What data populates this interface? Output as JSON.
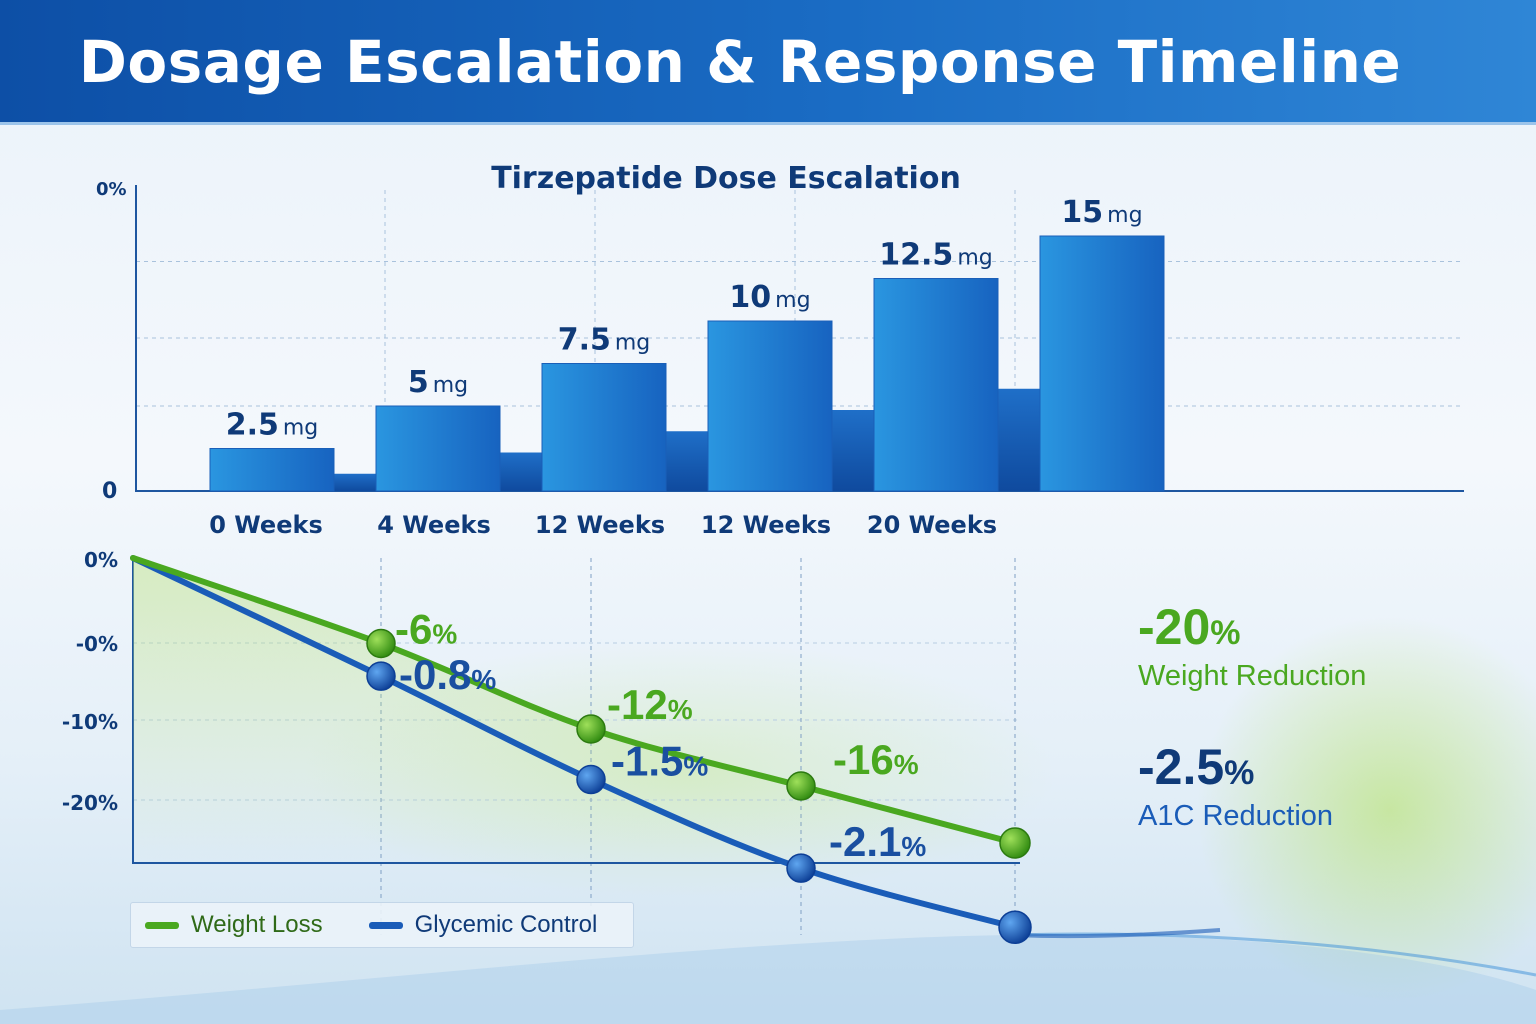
{
  "title": "Dosage Escalation & Response Timeline",
  "colors": {
    "bar": "#1f7fd0",
    "weight_loss": "#4aa820",
    "glycemic_control": "#1a5cb8",
    "label_dark": "#0f3a78",
    "axis": "#1e56a0"
  },
  "chart_data": [
    {
      "type": "bar",
      "title": "Tirzepatide Dose Escalation",
      "categories": [
        "0 Weeks",
        "4 Weeks",
        "12 Weeks",
        "12 Weeks",
        "20 Weeks",
        ""
      ],
      "values": [
        2.5,
        5,
        7.5,
        10,
        12.5,
        15
      ],
      "data_labels": [
        {
          "num": "2.5",
          "unit": "mg"
        },
        {
          "num": "5",
          "unit": "mg"
        },
        {
          "num": "7.5",
          "unit": "mg"
        },
        {
          "num": "10",
          "unit": "mg"
        },
        {
          "num": "12.5",
          "unit": "mg"
        },
        {
          "num": "15",
          "unit": "mg"
        }
      ],
      "y_tick_labels": [
        "0%",
        "0"
      ],
      "ylim": [
        0,
        18
      ],
      "grid": true
    },
    {
      "type": "line",
      "x": [
        0,
        1,
        2,
        3,
        4
      ],
      "y_tick_labels": [
        "0%",
        "-0%",
        "-10%",
        "-20%"
      ],
      "ylim": [
        -24,
        0
      ],
      "grid": true,
      "legend": "bottom-left",
      "series": [
        {
          "name": "Weight Loss",
          "values": [
            0,
            -6,
            -12,
            -16,
            -20
          ],
          "point_labels": [
            "",
            "-6%",
            "-12%",
            "-16%",
            ""
          ]
        },
        {
          "name": "Glycemic Control",
          "values": [
            0,
            -0.8,
            -1.5,
            -2.1,
            -2.5
          ],
          "point_labels": [
            "",
            "-0.8%",
            "-1.5%",
            "-2.1%",
            ""
          ]
        }
      ]
    }
  ],
  "summary": {
    "weight_value": "-20",
    "weight_pct": "%",
    "weight_label": "Weight Reduction",
    "a1c_value": "-2.5",
    "a1c_pct": "%",
    "a1c_label": "A1C Reduction"
  }
}
